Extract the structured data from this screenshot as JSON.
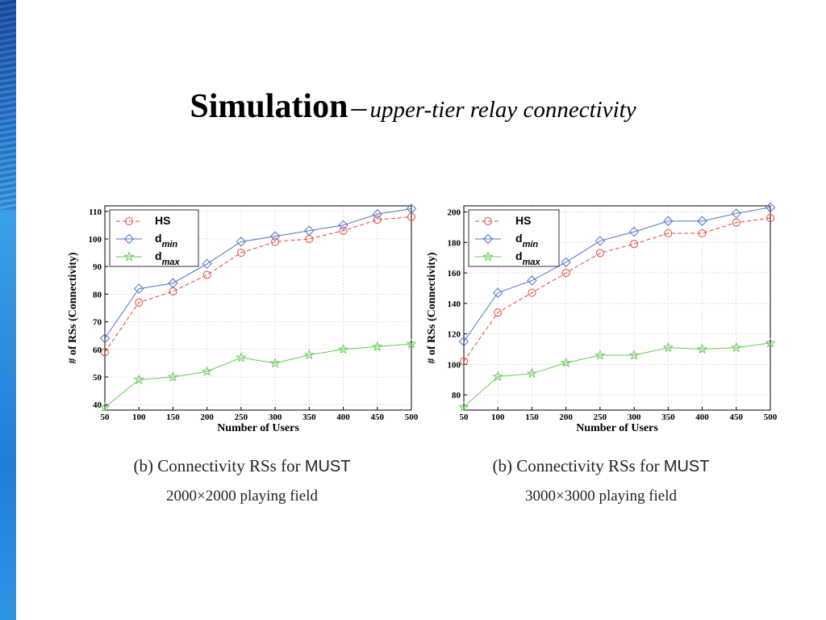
{
  "slide": {
    "title_main": "Simulation",
    "title_separator": "–",
    "title_sub": "upper-tier relay connectivity"
  },
  "colors": {
    "hs": "#e8443a",
    "dmin": "#5272c8",
    "dmax": "#66cc55",
    "grid": "#c8c8c8",
    "accent_bar": "#2a8fe0"
  },
  "chart_data": [
    {
      "type": "line",
      "xlabel": "Number of Users",
      "ylabel": "# of RSs (Connectivity)",
      "x": [
        50,
        100,
        150,
        200,
        250,
        300,
        350,
        400,
        450,
        500
      ],
      "x_ticks": [
        "50",
        "100",
        "150",
        "200",
        "250",
        "300",
        "350",
        "400",
        "450",
        "500"
      ],
      "xlim": [
        50,
        500
      ],
      "ylim": [
        38,
        112
      ],
      "y_ticks": [
        40,
        50,
        60,
        70,
        80,
        90,
        100,
        110
      ],
      "grid": true,
      "legend_position": "top-left",
      "series": [
        {
          "name": "HS",
          "name_main": "HS",
          "name_sub": "",
          "style": "dashed",
          "marker": "circle",
          "color": "#e8443a",
          "values": [
            59,
            77,
            81,
            87,
            95,
            99,
            100,
            103,
            107,
            108
          ]
        },
        {
          "name": "dmin",
          "name_main": "d",
          "name_sub": "min",
          "style": "solid",
          "marker": "diamond",
          "color": "#5272c8",
          "values": [
            64,
            82,
            84,
            91,
            99,
            101,
            103,
            105,
            109,
            111
          ]
        },
        {
          "name": "dmax",
          "name_main": "d",
          "name_sub": "max",
          "style": "solid",
          "marker": "star",
          "color": "#66cc55",
          "values": [
            39,
            49,
            50,
            52,
            57,
            55,
            58,
            60,
            61,
            62
          ]
        }
      ],
      "caption_label": "(b)",
      "caption_text": "Connectivity RSs for",
      "caption_sans": "MUST",
      "caption_field": "2000×2000 playing field"
    },
    {
      "type": "line",
      "xlabel": "Number of Users",
      "ylabel": "# of RSs (Connectivity)",
      "x": [
        50,
        100,
        150,
        200,
        250,
        300,
        350,
        400,
        450,
        500
      ],
      "x_ticks": [
        "50",
        "100",
        "150",
        "200",
        "250",
        "300",
        "350",
        "400",
        "450",
        "500"
      ],
      "xlim": [
        50,
        500
      ],
      "ylim": [
        70,
        204
      ],
      "y_ticks": [
        80,
        100,
        120,
        140,
        160,
        180,
        200
      ],
      "grid": true,
      "legend_position": "top-left",
      "series": [
        {
          "name": "HS",
          "name_main": "HS",
          "name_sub": "",
          "style": "dashed",
          "marker": "circle",
          "color": "#e8443a",
          "values": [
            102,
            134,
            147,
            160,
            173,
            179,
            186,
            186,
            193,
            196
          ]
        },
        {
          "name": "dmin",
          "name_main": "d",
          "name_sub": "min",
          "style": "solid",
          "marker": "diamond",
          "color": "#5272c8",
          "values": [
            115,
            147,
            155,
            167,
            181,
            187,
            194,
            194,
            199,
            203
          ]
        },
        {
          "name": "dmax",
          "name_main": "d",
          "name_sub": "max",
          "style": "solid",
          "marker": "star",
          "color": "#66cc55",
          "values": [
            72,
            92,
            94,
            101,
            106,
            106,
            111,
            110,
            111,
            114
          ]
        }
      ],
      "caption_label": "(b)",
      "caption_text": "Connectivity RSs for",
      "caption_sans": "MUST",
      "caption_field": "3000×3000 playing field"
    }
  ]
}
